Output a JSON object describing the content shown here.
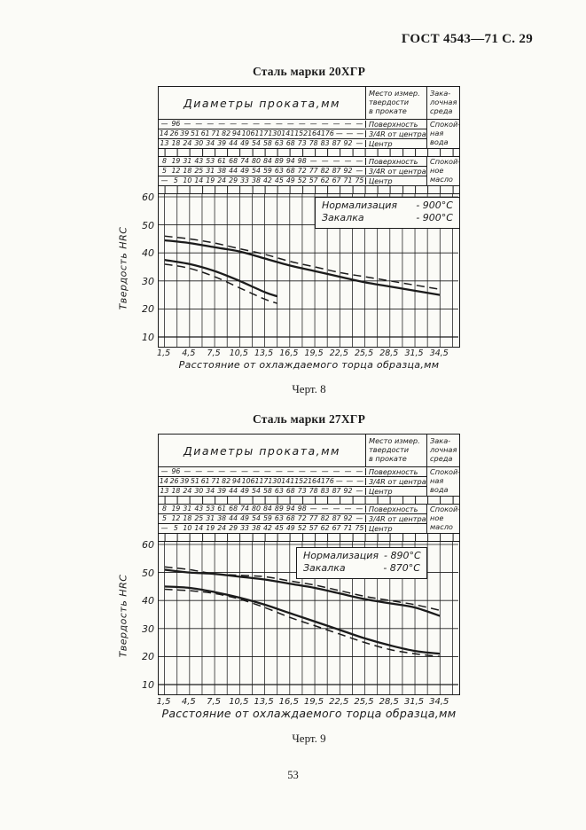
{
  "page": {
    "header": "ГОСТ 4543—71 С. 29",
    "page_number": "53"
  },
  "figures": [
    {
      "title": "Сталь марки 20ХГР",
      "caption": "Черт. 8",
      "table": {
        "diameters_header": "Диаметры проката,мм",
        "place_header": [
          "Место измер.",
          "твердости",
          "в прокате"
        ],
        "media_header": [
          "Зака-",
          "лочная",
          "среда"
        ],
        "groups": [
          {
            "media": [
              "Спокой-",
              "ная",
              "вода"
            ],
            "rows": [
              {
                "place": "Поверхность",
                "values": [
                  "—",
                  "96",
                  "—",
                  "—",
                  "—",
                  "—",
                  "—",
                  "—",
                  "—",
                  "—",
                  "—",
                  "—",
                  "—",
                  "—",
                  "—",
                  "—",
                  "—",
                  "—"
                ]
              },
              {
                "place": "3/4R от центра",
                "values": [
                  "14",
                  "26",
                  "39",
                  "51",
                  "61",
                  "71",
                  "82",
                  "94",
                  "106",
                  "117",
                  "130",
                  "141",
                  "152",
                  "164",
                  "176",
                  "—",
                  "—",
                  "—"
                ]
              },
              {
                "place": "Центр",
                "values": [
                  "13",
                  "18",
                  "24",
                  "30",
                  "34",
                  "39",
                  "44",
                  "49",
                  "54",
                  "58",
                  "63",
                  "68",
                  "73",
                  "78",
                  "83",
                  "87",
                  "92",
                  "—"
                ]
              }
            ]
          },
          {
            "media": [
              "Спокой-",
              "ное",
              "масло"
            ],
            "rows": [
              {
                "place": "Поверхность",
                "values": [
                  "8",
                  "19",
                  "31",
                  "43",
                  "53",
                  "61",
                  "68",
                  "74",
                  "80",
                  "84",
                  "89",
                  "94",
                  "98",
                  "—",
                  "—",
                  "—",
                  "—",
                  "—"
                ]
              },
              {
                "place": "3/4R от центра",
                "values": [
                  "5",
                  "12",
                  "18",
                  "25",
                  "31",
                  "38",
                  "44",
                  "49",
                  "54",
                  "59",
                  "63",
                  "68",
                  "72",
                  "77",
                  "82",
                  "87",
                  "92",
                  "—"
                ]
              },
              {
                "place": "Центр",
                "values": [
                  "—",
                  "5",
                  "10",
                  "14",
                  "19",
                  "24",
                  "29",
                  "33",
                  "38",
                  "42",
                  "45",
                  "49",
                  "52",
                  "57",
                  "62",
                  "67",
                  "71",
                  "75"
                ]
              }
            ]
          }
        ]
      },
      "annotation": [
        {
          "label": "Нормализация",
          "value": "- 900°С"
        },
        {
          "label": "Закалка",
          "value": "- 900°С"
        }
      ]
    },
    {
      "title": "Сталь марки 27ХГР",
      "caption": "Черт. 9",
      "table": {
        "diameters_header": "Диаметры проката,мм",
        "place_header": [
          "Место измер.",
          "твердости",
          "в прокате"
        ],
        "media_header": [
          "Зака-",
          "лочная",
          "среда"
        ],
        "groups": [
          {
            "media": [
              "Спокой-",
              "ная",
              "вода"
            ],
            "rows": [
              {
                "place": "Поверхность",
                "values": [
                  "—",
                  "96",
                  "—",
                  "—",
                  "—",
                  "—",
                  "—",
                  "—",
                  "—",
                  "—",
                  "—",
                  "—",
                  "—",
                  "—",
                  "—",
                  "—",
                  "—",
                  "—"
                ]
              },
              {
                "place": "3/4R от центра",
                "values": [
                  "14",
                  "26",
                  "39",
                  "51",
                  "61",
                  "71",
                  "82",
                  "94",
                  "106",
                  "117",
                  "130",
                  "141",
                  "152",
                  "164",
                  "176",
                  "—",
                  "—",
                  "—"
                ]
              },
              {
                "place": "Центр",
                "values": [
                  "13",
                  "18",
                  "24",
                  "30",
                  "34",
                  "39",
                  "44",
                  "49",
                  "54",
                  "58",
                  "63",
                  "68",
                  "73",
                  "78",
                  "83",
                  "87",
                  "92",
                  "—"
                ]
              }
            ]
          },
          {
            "media": [
              "Спокой-",
              "ное",
              "масло"
            ],
            "rows": [
              {
                "place": "Поверхность",
                "values": [
                  "8",
                  "19",
                  "31",
                  "43",
                  "53",
                  "61",
                  "68",
                  "74",
                  "80",
                  "84",
                  "89",
                  "94",
                  "98",
                  "—",
                  "—",
                  "—",
                  "—",
                  "—"
                ]
              },
              {
                "place": "3/4R от центра",
                "values": [
                  "5",
                  "12",
                  "18",
                  "25",
                  "31",
                  "38",
                  "44",
                  "49",
                  "54",
                  "59",
                  "63",
                  "68",
                  "72",
                  "77",
                  "82",
                  "87",
                  "92",
                  "—"
                ]
              },
              {
                "place": "Центр",
                "values": [
                  "—",
                  "5",
                  "10",
                  "14",
                  "19",
                  "24",
                  "29",
                  "33",
                  "38",
                  "42",
                  "45",
                  "49",
                  "52",
                  "57",
                  "62",
                  "67",
                  "71",
                  "75"
                ]
              }
            ]
          }
        ]
      },
      "annotation": [
        {
          "label": "Нормализация",
          "value": "- 890°С"
        },
        {
          "label": "Закалка",
          "value": "- 870°С"
        }
      ]
    }
  ],
  "chart_data": [
    {
      "type": "line",
      "title": "Сталь марки 20ХГР",
      "xlabel": "Расстояние от охлаждаемого торца образца,мм",
      "ylabel": "Твердость HRC",
      "xlim": [
        1.5,
        36
      ],
      "ylim": [
        10,
        63
      ],
      "xticks": [
        1.5,
        4.5,
        7.5,
        10.5,
        13.5,
        16.5,
        19.5,
        22.5,
        25.5,
        28.5,
        31.5,
        34.5
      ],
      "yticks": [
        60,
        50,
        40,
        30,
        20,
        10
      ],
      "grid": {
        "x_step": 1.5,
        "y_step": 10
      },
      "legend": "none",
      "annotations": [
        "Нормализация - 900°С",
        "Закалка - 900°С"
      ],
      "series": [
        {
          "name": "upper-band-solid",
          "style": "solid",
          "x": [
            1.5,
            4.5,
            7.5,
            10.5,
            13.5,
            16.5,
            19.5,
            22.5,
            25.5,
            28.5,
            31.5,
            34.5
          ],
          "y": [
            44.5,
            43.5,
            42,
            40.5,
            38,
            35.5,
            33.5,
            31.5,
            29.5,
            28,
            26.5,
            25
          ]
        },
        {
          "name": "upper-band-dashed",
          "style": "dashed",
          "x": [
            1.5,
            4.5,
            7.5,
            10.5,
            13.5,
            16.5,
            19.5,
            22.5,
            25.5,
            28.5,
            31.5,
            34.5
          ],
          "y": [
            46,
            45,
            43.5,
            41.5,
            39.5,
            37,
            35,
            33,
            31.5,
            30,
            28.5,
            27
          ]
        },
        {
          "name": "lower-band-solid",
          "style": "solid",
          "x": [
            1.5,
            4.5,
            7.5,
            10.5,
            13.5,
            15
          ],
          "y": [
            37.5,
            36,
            33.5,
            30,
            26,
            24.5
          ]
        },
        {
          "name": "lower-band-dashed",
          "style": "dashed",
          "x": [
            1.5,
            4.5,
            7.5,
            10.5,
            13.5,
            15
          ],
          "y": [
            36,
            34.5,
            31.5,
            27.5,
            23.5,
            22
          ]
        }
      ]
    },
    {
      "type": "line",
      "title": "Сталь марки 27ХГР",
      "xlabel": "Расстояние от охлаждаемого торца образца,мм",
      "ylabel": "Твердость HRC",
      "xlim": [
        1.5,
        36
      ],
      "ylim": [
        10,
        63
      ],
      "xticks": [
        1.5,
        4.5,
        7.5,
        10.5,
        13.5,
        16.5,
        19.5,
        22.5,
        25.5,
        28.5,
        31.5,
        34.5
      ],
      "yticks": [
        60,
        50,
        40,
        30,
        20,
        10
      ],
      "grid": {
        "x_step": 1.5,
        "y_step": 10
      },
      "legend": "none",
      "annotations": [
        "Нормализация - 890°С",
        "Закалка - 870°С"
      ],
      "series": [
        {
          "name": "upper-band-solid",
          "style": "solid",
          "x": [
            1.5,
            4.5,
            7.5,
            10.5,
            13.5,
            16.5,
            19.5,
            22.5,
            25.5,
            28.5,
            31.5,
            34.5
          ],
          "y": [
            51,
            50,
            49.5,
            48.5,
            47.5,
            46,
            44.5,
            42.5,
            40.5,
            39,
            37.5,
            34.5
          ]
        },
        {
          "name": "upper-band-dashed",
          "style": "dashed",
          "x": [
            1.5,
            4.5,
            7.5,
            10.5,
            13.5,
            16.5,
            19.5,
            22.5,
            25.5,
            28.5,
            31.5,
            34.5
          ],
          "y": [
            52,
            51,
            49.5,
            49,
            48.5,
            47,
            45.5,
            43.5,
            41.5,
            40,
            38.5,
            36.5
          ]
        },
        {
          "name": "lower-band-solid",
          "style": "solid",
          "x": [
            1.5,
            4.5,
            7.5,
            10.5,
            13.5,
            16.5,
            19.5,
            22.5,
            25.5,
            28.5,
            31.5,
            34.5
          ],
          "y": [
            45,
            44.5,
            43,
            41,
            38.5,
            35.5,
            32.5,
            29.5,
            26.5,
            24,
            22,
            21
          ]
        },
        {
          "name": "lower-band-dashed",
          "style": "dashed",
          "x": [
            1.5,
            4.5,
            7.5,
            10.5,
            13.5,
            16.5,
            19.5,
            22.5,
            25.5,
            28.5,
            31.5,
            34.5
          ],
          "y": [
            44,
            43.5,
            42.5,
            40.5,
            37.5,
            34,
            31,
            28,
            25,
            22.5,
            21,
            20
          ]
        }
      ]
    }
  ]
}
